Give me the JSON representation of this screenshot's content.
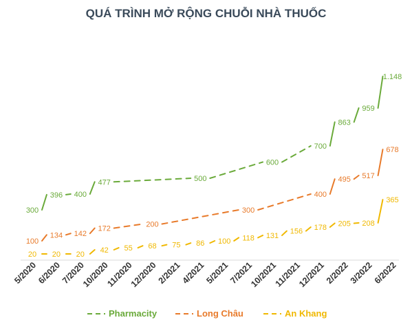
{
  "chart_data": {
    "type": "line",
    "title": "QUÁ TRÌNH MỞ RỘNG CHUỖI NHÀ THUỐC",
    "categories": [
      "5/2020",
      "6/2020",
      "7/2020",
      "10/2020",
      "11/2020",
      "12/2020",
      "2/2021",
      "4/2021",
      "5/2021",
      "7/2021",
      "10/2021",
      "11/2021",
      "12/2021",
      "2/2022",
      "3/2022",
      "6/2022"
    ],
    "series": [
      {
        "name": "Pharmacity",
        "color": "#6aaa3a",
        "values": [
          300,
          396,
          400,
          477,
          null,
          null,
          null,
          500,
          null,
          null,
          600,
          null,
          700,
          863,
          959,
          1148
        ],
        "labels": [
          "300",
          "396",
          "400",
          "477",
          null,
          null,
          null,
          "500",
          null,
          null,
          "600",
          null,
          "700",
          "863",
          "959",
          "1.148"
        ],
        "offset": 0
      },
      {
        "name": "Long Châu",
        "color": "#e87a2a",
        "values": [
          100,
          134,
          142,
          172,
          null,
          200,
          null,
          null,
          null,
          300,
          null,
          null,
          400,
          495,
          517,
          678
        ],
        "labels": [
          "100",
          "134",
          "142",
          "172",
          null,
          "200",
          null,
          null,
          null,
          "300",
          null,
          null,
          "400",
          "495",
          "517",
          "678"
        ],
        "offset": 0
      },
      {
        "name": "An Khang",
        "color": "#f0b800",
        "values": [
          20,
          20,
          20,
          42,
          55,
          68,
          75,
          86,
          100,
          118,
          131,
          156,
          178,
          205,
          208,
          365
        ],
        "labels": [
          "20",
          "20",
          "20",
          "42",
          "55",
          "68",
          "75",
          "86",
          "100",
          "118",
          "131",
          "156",
          "178",
          "205",
          "208",
          "365"
        ],
        "offset": 0
      }
    ],
    "legend_position": "bottom",
    "grid": false
  }
}
